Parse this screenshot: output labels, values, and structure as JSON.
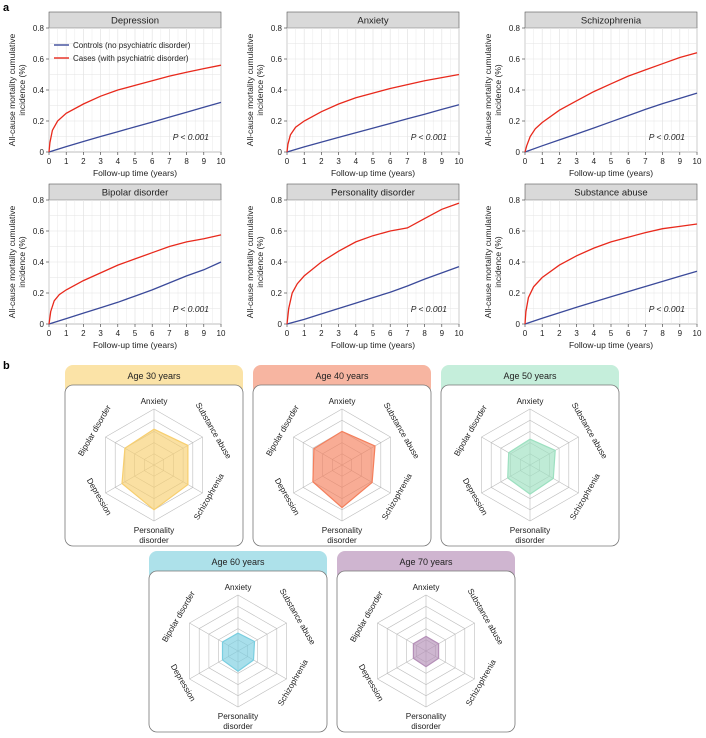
{
  "panels": {
    "a_label": "a",
    "b_label": "b"
  },
  "colors": {
    "controls": "#3b4a9a",
    "cases": "#e8291c",
    "strip_bg": "#d9d9d9",
    "grid": "#e3e3e3"
  },
  "legend": {
    "controls_label": "Controls (no psychiatric disorder)",
    "cases_label": "Cases (with psychiatric disorder)"
  },
  "chart_data": [
    {
      "type": "line",
      "title": "Depression",
      "xlabel": "Follow-up time (years)",
      "ylabel_line1": "All-cause mortality cumulative",
      "ylabel_line2": "incidence (%)",
      "xlim": [
        0,
        10
      ],
      "ylim": [
        0,
        0.8
      ],
      "xticks": [
        "0",
        "1",
        "2",
        "3",
        "4",
        "5",
        "6",
        "7",
        "8",
        "9",
        "10"
      ],
      "yticks": [
        "0",
        "0.2",
        "0.4",
        "0.6",
        "0.8"
      ],
      "annotation": "P < 0.001",
      "series": [
        {
          "name": "Controls (no psychiatric disorder)",
          "x": [
            0,
            1,
            2,
            3,
            4,
            5,
            6,
            7,
            8,
            9,
            10
          ],
          "y": [
            0,
            0.035,
            0.068,
            0.1,
            0.131,
            0.162,
            0.193,
            0.225,
            0.257,
            0.289,
            0.32
          ]
        },
        {
          "name": "Cases (with psychiatric disorder)",
          "x": [
            0,
            0.05,
            0.2,
            0.5,
            1,
            2,
            3,
            4,
            5,
            6,
            7,
            8,
            9,
            10
          ],
          "y": [
            0,
            0.06,
            0.14,
            0.2,
            0.25,
            0.31,
            0.36,
            0.4,
            0.43,
            0.46,
            0.49,
            0.515,
            0.538,
            0.56
          ]
        }
      ]
    },
    {
      "type": "line",
      "title": "Anxiety",
      "xlabel": "Follow-up time (years)",
      "ylabel_line1": "All-cause mortality cumulative",
      "ylabel_line2": "incidence (%)",
      "xlim": [
        0,
        10
      ],
      "ylim": [
        0,
        0.8
      ],
      "xticks": [
        "0",
        "1",
        "2",
        "3",
        "4",
        "5",
        "6",
        "7",
        "8",
        "9",
        "10"
      ],
      "yticks": [
        "0",
        "0.2",
        "0.4",
        "0.6",
        "0.8"
      ],
      "annotation": "P < 0.001",
      "series": [
        {
          "name": "Controls (no psychiatric disorder)",
          "x": [
            0,
            1,
            2,
            3,
            4,
            5,
            6,
            7,
            8,
            9,
            10
          ],
          "y": [
            0,
            0.033,
            0.064,
            0.094,
            0.124,
            0.154,
            0.184,
            0.214,
            0.244,
            0.275,
            0.305
          ]
        },
        {
          "name": "Cases (with psychiatric disorder)",
          "x": [
            0,
            0.05,
            0.2,
            0.5,
            1,
            2,
            3,
            4,
            5,
            6,
            7,
            8,
            9,
            10
          ],
          "y": [
            0,
            0.05,
            0.11,
            0.16,
            0.2,
            0.26,
            0.31,
            0.35,
            0.38,
            0.41,
            0.435,
            0.46,
            0.48,
            0.5
          ]
        }
      ]
    },
    {
      "type": "line",
      "title": "Schizophrenia",
      "xlabel": "Follow-up time (years)",
      "ylabel_line1": "All-cause mortality cumulative",
      "ylabel_line2": "incidence (%)",
      "xlim": [
        0,
        10
      ],
      "ylim": [
        0,
        0.8
      ],
      "xticks": [
        "0",
        "1",
        "2",
        "3",
        "4",
        "5",
        "6",
        "7",
        "8",
        "9",
        "10"
      ],
      "yticks": [
        "0",
        "0.2",
        "0.4",
        "0.6",
        "0.8"
      ],
      "annotation": "P < 0.001",
      "series": [
        {
          "name": "Controls (no psychiatric disorder)",
          "x": [
            0,
            1,
            2,
            3,
            4,
            5,
            6,
            7,
            8,
            9,
            10
          ],
          "y": [
            0,
            0.04,
            0.078,
            0.116,
            0.155,
            0.195,
            0.235,
            0.275,
            0.312,
            0.346,
            0.38
          ]
        },
        {
          "name": "Cases (with psychiatric disorder)",
          "x": [
            0,
            0.1,
            0.3,
            0.6,
            1,
            2,
            3,
            4,
            5,
            6,
            7,
            8,
            9,
            10
          ],
          "y": [
            0,
            0.04,
            0.1,
            0.15,
            0.19,
            0.27,
            0.33,
            0.39,
            0.44,
            0.49,
            0.53,
            0.57,
            0.61,
            0.64
          ]
        }
      ]
    },
    {
      "type": "line",
      "title": "Bipolar disorder",
      "xlabel": "Follow-up time (years)",
      "ylabel_line1": "All-cause mortality cumulative",
      "ylabel_line2": "incidence (%)",
      "xlim": [
        0,
        10
      ],
      "ylim": [
        0,
        0.8
      ],
      "xticks": [
        "0",
        "1",
        "2",
        "3",
        "4",
        "5",
        "6",
        "7",
        "8",
        "9",
        "10"
      ],
      "yticks": [
        "0",
        "0.2",
        "0.4",
        "0.6",
        "0.8"
      ],
      "annotation": "P < 0.001",
      "series": [
        {
          "name": "Controls (no psychiatric disorder)",
          "x": [
            0,
            1,
            2,
            3,
            4,
            5,
            6,
            7,
            8,
            9,
            10
          ],
          "y": [
            0,
            0.035,
            0.07,
            0.105,
            0.14,
            0.18,
            0.22,
            0.265,
            0.31,
            0.35,
            0.4
          ]
        },
        {
          "name": "Cases (with psychiatric disorder)",
          "x": [
            0,
            0.1,
            0.3,
            0.6,
            1,
            2,
            3,
            4,
            5,
            6,
            7,
            8,
            9,
            10
          ],
          "y": [
            0,
            0.08,
            0.15,
            0.19,
            0.22,
            0.28,
            0.33,
            0.38,
            0.42,
            0.46,
            0.5,
            0.53,
            0.55,
            0.575
          ]
        }
      ]
    },
    {
      "type": "line",
      "title": "Personality disorder",
      "xlabel": "Follow-up time (years)",
      "ylabel_line1": "All-cause mortality cumulative",
      "ylabel_line2": "incidence (%)",
      "xlim": [
        0,
        10
      ],
      "ylim": [
        0,
        0.8
      ],
      "xticks": [
        "0",
        "1",
        "2",
        "3",
        "4",
        "5",
        "6",
        "7",
        "8",
        "9",
        "10"
      ],
      "yticks": [
        "0",
        "0.2",
        "0.4",
        "0.6",
        "0.8"
      ],
      "annotation": "P < 0.001",
      "series": [
        {
          "name": "Controls (no psychiatric disorder)",
          "x": [
            0,
            1,
            2,
            3,
            4,
            5,
            6,
            7,
            8,
            9,
            10
          ],
          "y": [
            0,
            0.03,
            0.065,
            0.1,
            0.135,
            0.17,
            0.205,
            0.245,
            0.29,
            0.33,
            0.37
          ]
        },
        {
          "name": "Cases (with psychiatric disorder)",
          "x": [
            0,
            0.1,
            0.3,
            0.6,
            1,
            2,
            3,
            4,
            5,
            6,
            7,
            8,
            9,
            10
          ],
          "y": [
            0,
            0.1,
            0.2,
            0.26,
            0.31,
            0.4,
            0.47,
            0.53,
            0.57,
            0.6,
            0.62,
            0.68,
            0.74,
            0.78
          ]
        }
      ]
    },
    {
      "type": "line",
      "title": "Substance abuse",
      "xlabel": "Follow-up time (years)",
      "ylabel_line1": "All-cause mortality cumulative",
      "ylabel_line2": "incidence (%)",
      "xlim": [
        0,
        10
      ],
      "ylim": [
        0,
        0.8
      ],
      "xticks": [
        "0",
        "1",
        "2",
        "3",
        "4",
        "5",
        "6",
        "7",
        "8",
        "9",
        "10"
      ],
      "yticks": [
        "0",
        "0.2",
        "0.4",
        "0.6",
        "0.8"
      ],
      "annotation": "P < 0.001",
      "series": [
        {
          "name": "Controls (no psychiatric disorder)",
          "x": [
            0,
            1,
            2,
            3,
            4,
            5,
            6,
            7,
            8,
            9,
            10
          ],
          "y": [
            0,
            0.037,
            0.073,
            0.108,
            0.142,
            0.176,
            0.209,
            0.242,
            0.275,
            0.308,
            0.34
          ]
        },
        {
          "name": "Cases (with psychiatric disorder)",
          "x": [
            0,
            0.05,
            0.2,
            0.5,
            1,
            2,
            3,
            4,
            5,
            6,
            7,
            8,
            9,
            10
          ],
          "y": [
            0,
            0.08,
            0.17,
            0.24,
            0.3,
            0.38,
            0.44,
            0.49,
            0.53,
            0.56,
            0.59,
            0.615,
            0.63,
            0.645
          ]
        }
      ]
    },
    {
      "type": "radar",
      "title": "Age 30 years",
      "header_color": "#fbe3a7",
      "fill_color": "#f7cf70",
      "axes": [
        "Anxiety",
        "Substance abuse",
        "Schizophrenia",
        "Personality disorder",
        "Depression",
        "Bipolar disorder"
      ],
      "rmax": 5,
      "values": [
        3.2,
        3.5,
        3.5,
        4.0,
        3.3,
        3.0
      ]
    },
    {
      "type": "radar",
      "title": "Age 40 years",
      "header_color": "#f7b5a1",
      "fill_color": "#f47f5c",
      "axes": [
        "Anxiety",
        "Substance abuse",
        "Schizophrenia",
        "Personality disorder",
        "Depression",
        "Bipolar disorder"
      ],
      "rmax": 5,
      "values": [
        3.0,
        3.4,
        3.1,
        3.8,
        3.0,
        2.9
      ]
    },
    {
      "type": "radar",
      "title": "Age 50 years",
      "header_color": "#c5eedb",
      "fill_color": "#9de0c0",
      "axes": [
        "Anxiety",
        "Substance abuse",
        "Schizophrenia",
        "Personality disorder",
        "Depression",
        "Bipolar disorder"
      ],
      "rmax": 5,
      "values": [
        2.3,
        2.6,
        2.4,
        2.6,
        2.3,
        2.2
      ]
    },
    {
      "type": "radar",
      "title": "Age 60 years",
      "header_color": "#ade1ea",
      "fill_color": "#79cee0",
      "axes": [
        "Anxiety",
        "Substance abuse",
        "Schizophrenia",
        "Personality disorder",
        "Depression",
        "Bipolar disorder"
      ],
      "rmax": 5,
      "values": [
        1.6,
        1.7,
        1.6,
        1.8,
        1.6,
        1.6
      ]
    },
    {
      "type": "radar",
      "title": "Age 70 years",
      "header_color": "#cfb5d0",
      "fill_color": "#b48fb7",
      "axes": [
        "Anxiety",
        "Substance abuse",
        "Schizophrenia",
        "Personality disorder",
        "Depression",
        "Bipolar disorder"
      ],
      "rmax": 5,
      "values": [
        1.3,
        1.3,
        1.3,
        1.4,
        1.3,
        1.3
      ]
    }
  ]
}
